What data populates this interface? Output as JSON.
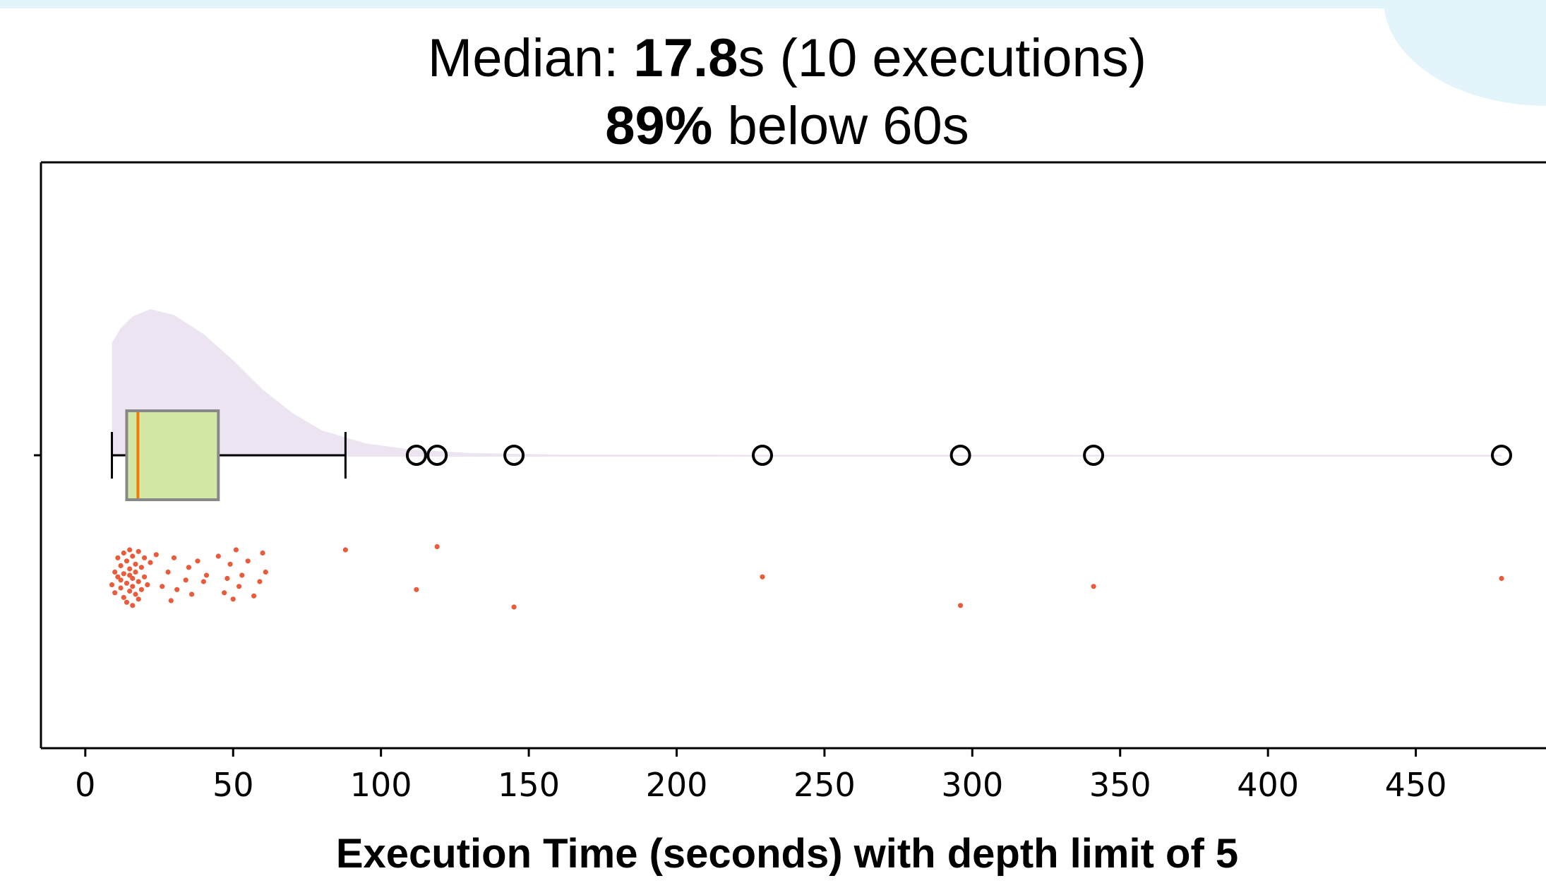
{
  "chart_data": {
    "type": "boxplot",
    "title": {
      "line1": {
        "prefix": "Median: ",
        "value": "17.8",
        "suffix": "s (10 executions)"
      },
      "line2": {
        "value": "89%",
        "suffix": " below 60s"
      }
    },
    "xlabel": "Execution Time (seconds) with depth limit of 5",
    "xlim": [
      -15,
      500
    ],
    "xticks": [
      0,
      50,
      100,
      150,
      200,
      250,
      300,
      350,
      400,
      450
    ],
    "box": {
      "whisker_low": 9,
      "q1": 14,
      "median": 17.8,
      "q3": 45,
      "whisker_high": 88
    },
    "outliers": [
      112,
      119,
      145,
      229,
      296,
      341,
      479
    ],
    "density": [
      [
        9,
        0.77
      ],
      [
        12,
        0.87
      ],
      [
        16,
        0.95
      ],
      [
        22,
        1.0
      ],
      [
        30,
        0.96
      ],
      [
        40,
        0.83
      ],
      [
        50,
        0.65
      ],
      [
        60,
        0.45
      ],
      [
        70,
        0.29
      ],
      [
        80,
        0.17
      ],
      [
        95,
        0.08
      ],
      [
        110,
        0.04
      ],
      [
        130,
        0.015
      ],
      [
        160,
        0.005
      ],
      [
        250,
        0.003
      ],
      [
        479,
        0.003
      ]
    ],
    "jitter_points": [
      [
        9,
        0.3
      ],
      [
        10,
        -0.1
      ],
      [
        10,
        0.55
      ],
      [
        11,
        0.05
      ],
      [
        11,
        -0.55
      ],
      [
        12,
        0.4
      ],
      [
        12,
        -0.3
      ],
      [
        12,
        0.15
      ],
      [
        13,
        -0.7
      ],
      [
        13,
        0.7
      ],
      [
        13,
        -0.05
      ],
      [
        14,
        0.25
      ],
      [
        14,
        -0.45
      ],
      [
        14,
        0.85
      ],
      [
        15,
        0.0
      ],
      [
        15,
        -0.2
      ],
      [
        15,
        0.5
      ],
      [
        15,
        -0.8
      ],
      [
        16,
        0.35
      ],
      [
        16,
        -0.6
      ],
      [
        16,
        0.1
      ],
      [
        16,
        0.95
      ],
      [
        17,
        -0.35
      ],
      [
        17,
        0.6
      ],
      [
        17,
        -0.1
      ],
      [
        18,
        0.2
      ],
      [
        18,
        -0.75
      ],
      [
        18,
        0.75
      ],
      [
        19,
        -0.25
      ],
      [
        19,
        0.45
      ],
      [
        20,
        0.05
      ],
      [
        20,
        -0.55
      ],
      [
        21,
        0.3
      ],
      [
        22,
        -0.4
      ],
      [
        24,
        -0.65
      ],
      [
        26,
        0.35
      ],
      [
        28,
        -0.1
      ],
      [
        29,
        0.8
      ],
      [
        30,
        -0.55
      ],
      [
        31,
        0.45
      ],
      [
        34,
        0.15
      ],
      [
        35,
        -0.25
      ],
      [
        36,
        0.6
      ],
      [
        38,
        -0.45
      ],
      [
        40,
        0.2
      ],
      [
        41,
        0.0
      ],
      [
        45,
        -0.6
      ],
      [
        47,
        0.55
      ],
      [
        48,
        0.1
      ],
      [
        49,
        -0.35
      ],
      [
        50,
        0.75
      ],
      [
        51,
        -0.8
      ],
      [
        52,
        0.35
      ],
      [
        53,
        0.0
      ],
      [
        55,
        -0.45
      ],
      [
        57,
        0.65
      ],
      [
        59,
        0.2
      ],
      [
        60,
        -0.7
      ],
      [
        61,
        -0.1
      ],
      [
        88,
        -0.8
      ],
      [
        112,
        0.45
      ],
      [
        119,
        -0.9
      ],
      [
        145,
        1.0
      ],
      [
        229,
        0.05
      ],
      [
        296,
        0.95
      ],
      [
        341,
        0.35
      ],
      [
        479,
        0.1
      ]
    ],
    "colors": {
      "box_fill": "#d3e8a4",
      "box_edge": "#888888",
      "median_line": "#f07d00",
      "density_fill": "#ece4f0",
      "jitter": "#ea5b3c",
      "axis": "#000000"
    },
    "grid": false,
    "legend": false
  }
}
